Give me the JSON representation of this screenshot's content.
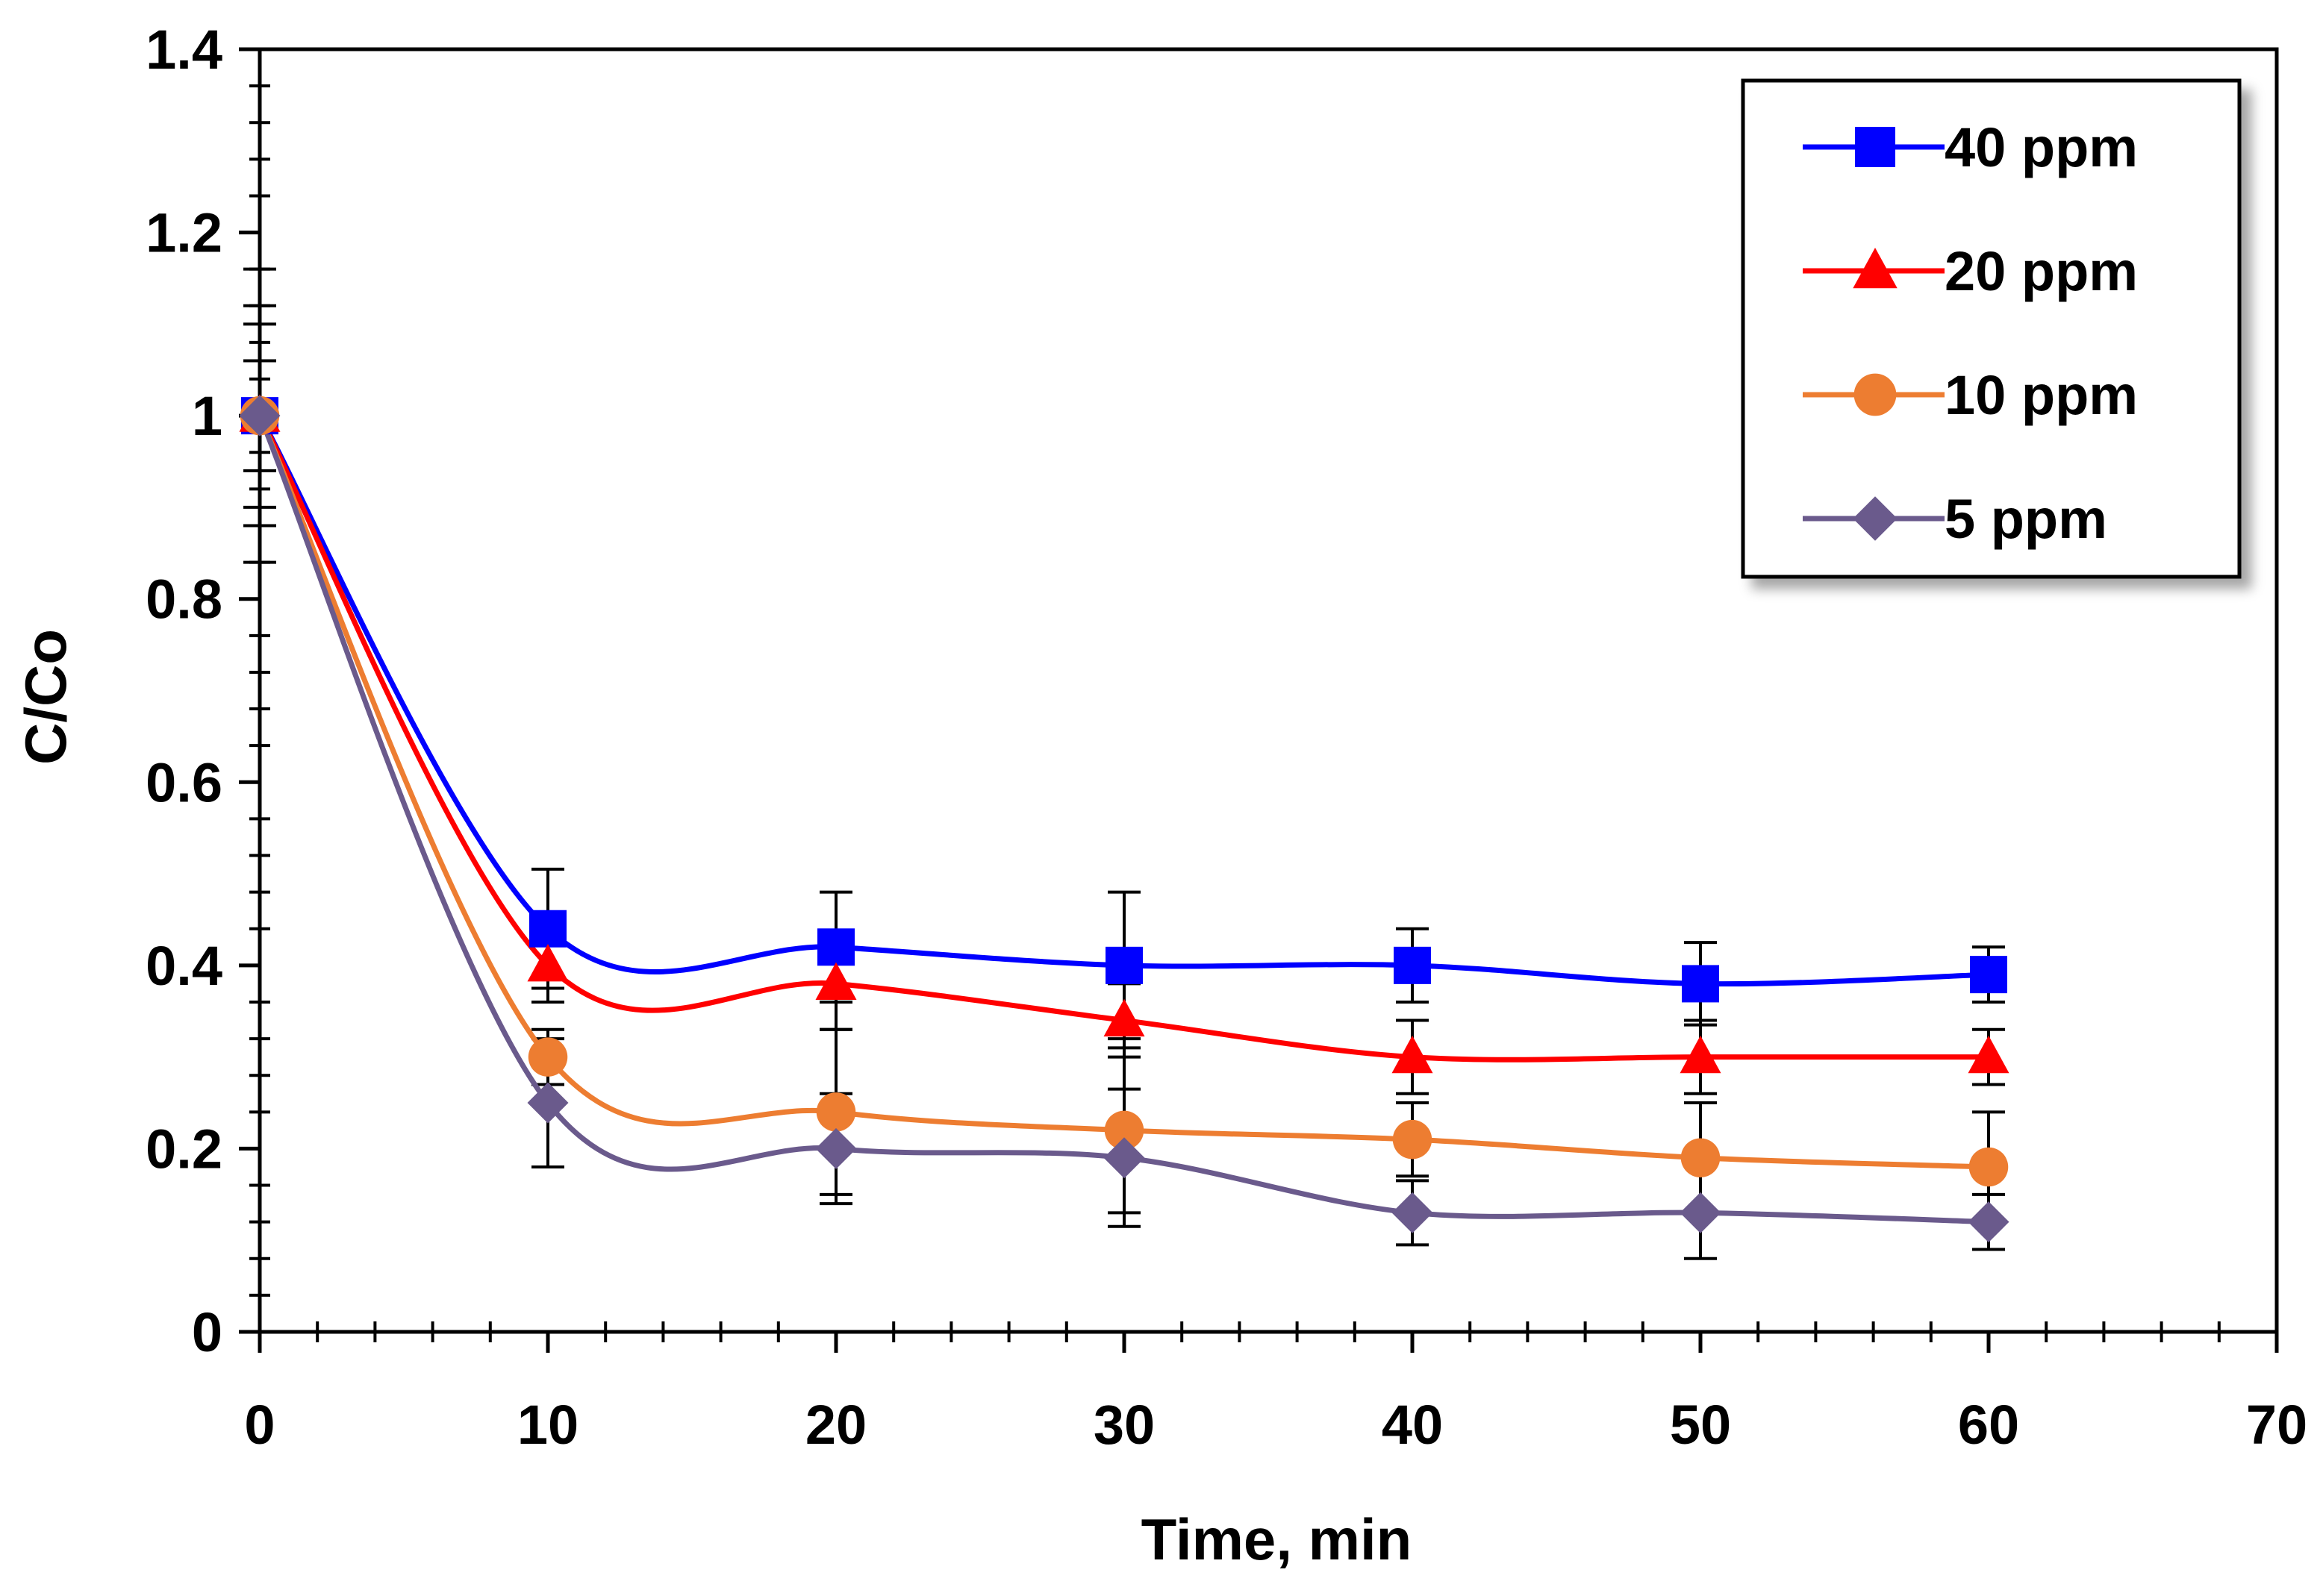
{
  "chart_data": {
    "type": "line",
    "xlabel": "Time, min",
    "ylabel": "C/Co",
    "xlim": [
      0,
      70
    ],
    "ylim": [
      0,
      1.4
    ],
    "x_major_ticks": [
      0,
      10,
      20,
      30,
      40,
      50,
      60,
      70
    ],
    "x_tick_labels": [
      "0",
      "10",
      "20",
      "30",
      "40",
      "50",
      "60",
      "70"
    ],
    "y_major_ticks": [
      0,
      0.2,
      0.4,
      0.6,
      0.8,
      1.0,
      1.2,
      1.4
    ],
    "y_tick_labels": [
      "0",
      "0.2",
      "0.4",
      "0.6",
      "0.8",
      "1",
      "1.2",
      "1.4"
    ],
    "x_minor_step": 2,
    "y_minor_step": 0.04,
    "grid": false,
    "smoothed_lines": true,
    "legend_position": "top-right",
    "series": [
      {
        "name": "40 ppm",
        "label": "40 ppm",
        "color": "#0000ff",
        "marker": "square",
        "x": [
          0,
          10,
          20,
          30,
          40,
          50,
          60
        ],
        "y": [
          1.0,
          0.44,
          0.42,
          0.4,
          0.4,
          0.38,
          0.39
        ],
        "error": [
          0.16,
          0.065,
          0.06,
          0.08,
          0.04,
          0.045,
          0.03
        ]
      },
      {
        "name": "20 ppm",
        "label": "20 ppm",
        "color": "#ff0000",
        "marker": "triangle",
        "x": [
          0,
          10,
          20,
          30,
          40,
          50,
          60
        ],
        "y": [
          1.0,
          0.4,
          0.38,
          0.34,
          0.3,
          0.3,
          0.3
        ],
        "error": [
          0.12,
          0.04,
          0.05,
          0.04,
          0.04,
          0.04,
          0.03
        ]
      },
      {
        "name": "10 ppm",
        "label": "10 ppm",
        "color": "#ed7d31",
        "marker": "circle",
        "x": [
          0,
          10,
          20,
          30,
          40,
          50,
          60
        ],
        "y": [
          1.0,
          0.3,
          0.24,
          0.22,
          0.21,
          0.19,
          0.18
        ],
        "error": [
          0.06,
          0.03,
          0.09,
          0.09,
          0.04,
          0.06,
          0.06
        ]
      },
      {
        "name": "5 ppm",
        "label": "5 ppm",
        "color": "#6a5a8c",
        "marker": "diamond",
        "x": [
          0,
          10,
          20,
          30,
          40,
          50,
          60
        ],
        "y": [
          1.0,
          0.25,
          0.2,
          0.19,
          0.13,
          0.13,
          0.12
        ],
        "error": [
          0.1,
          0.07,
          0.06,
          0.075,
          0.035,
          0.05,
          0.03
        ]
      }
    ]
  }
}
